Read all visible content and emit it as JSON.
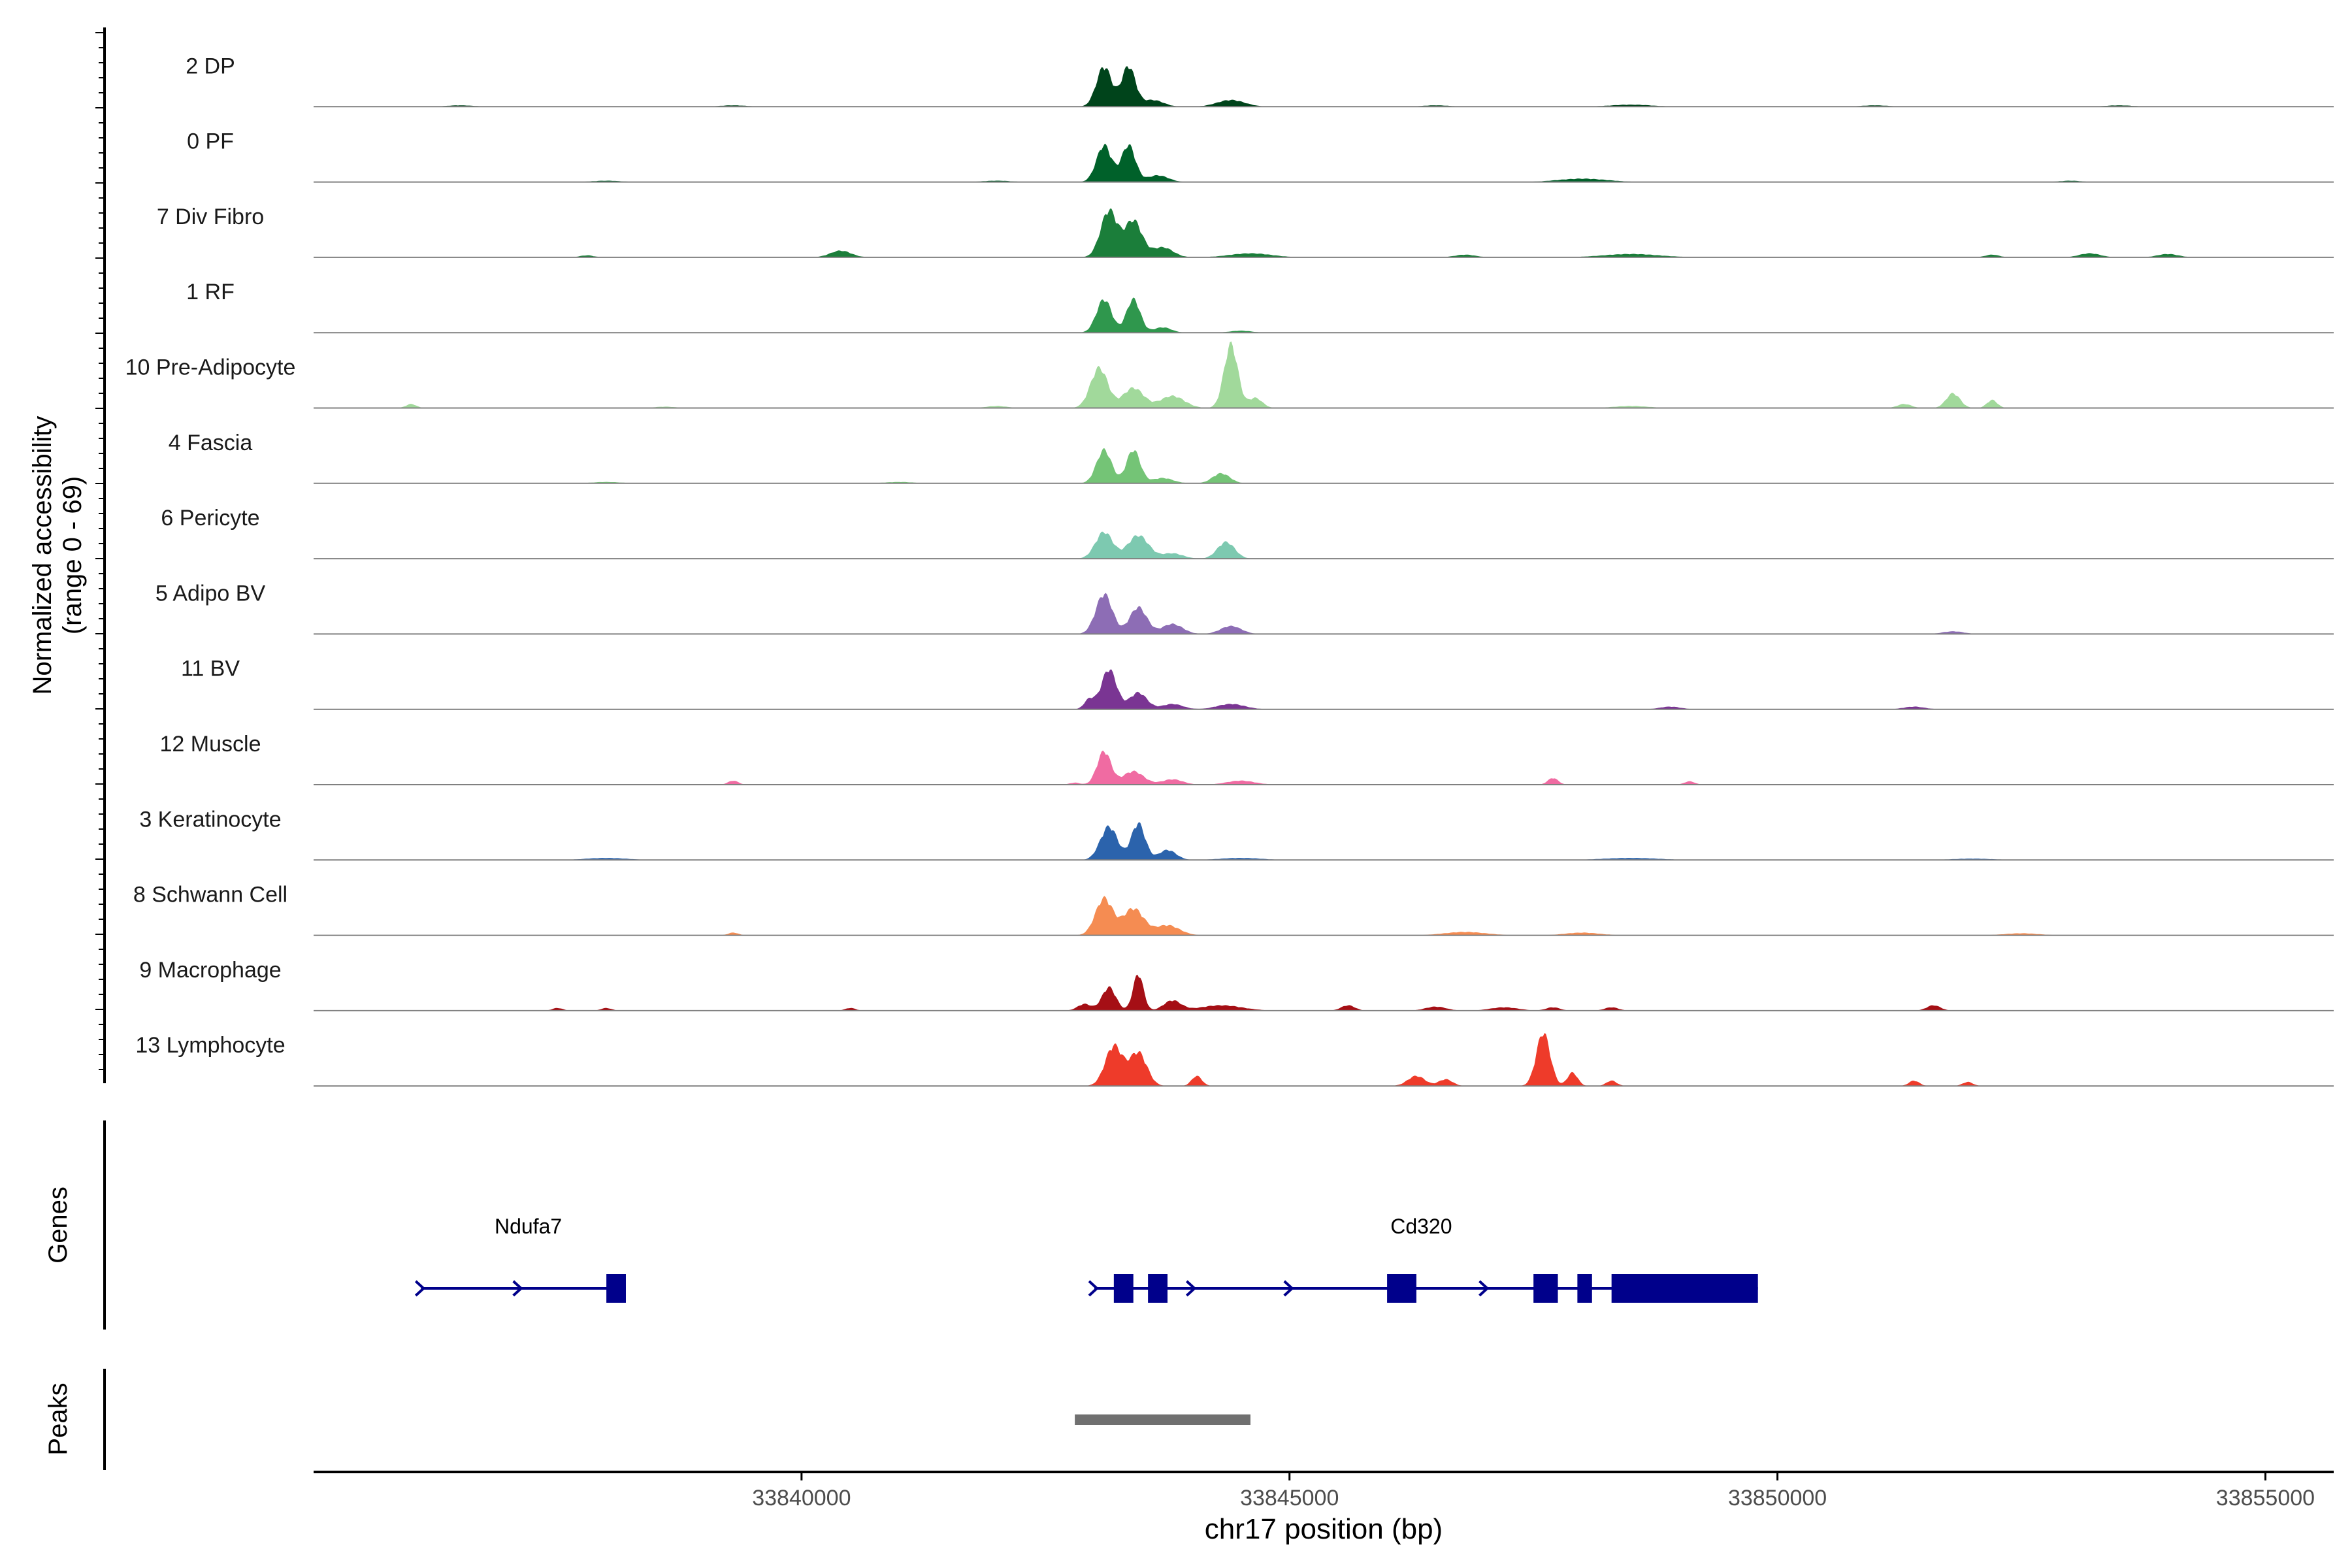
{
  "chart_data": {
    "type": "area",
    "title": "",
    "y_axis_title": "Normalized accessibility",
    "y_axis_range_label": "(range 0 - 69)",
    "ylim": [
      0,
      69
    ],
    "x_axis_title": "chr17 position (bp)",
    "xlim": [
      33835000,
      33855700
    ],
    "x_ticks": [
      33840000,
      33845000,
      33850000,
      33855000
    ],
    "x_tick_labels": [
      "33840000",
      "33845000",
      "33850000",
      "33855000"
    ],
    "tracks": [
      {
        "name": "2 DP",
        "color": "#00441B",
        "peaks": [
          [
            33843100,
            60,
            220
          ],
          [
            33843350,
            60,
            200
          ],
          [
            33843600,
            10,
            300
          ],
          [
            33844400,
            10,
            400
          ],
          [
            33836500,
            2,
            400
          ],
          [
            33839300,
            2,
            400
          ],
          [
            33846500,
            2,
            400
          ],
          [
            33848500,
            3,
            600
          ],
          [
            33851000,
            2,
            400
          ],
          [
            33853500,
            2,
            400
          ]
        ]
      },
      {
        "name": "0 PF",
        "color": "#00612A",
        "peaks": [
          [
            33843100,
            55,
            220
          ],
          [
            33843350,
            55,
            200
          ],
          [
            33843650,
            10,
            300
          ],
          [
            33838000,
            2,
            400
          ],
          [
            33848000,
            5,
            700
          ],
          [
            33842000,
            2,
            400
          ],
          [
            33853000,
            2,
            300
          ]
        ]
      },
      {
        "name": "7 Div Fibro",
        "color": "#1B7E3A",
        "peaks": [
          [
            33843150,
            70,
            240
          ],
          [
            33843400,
            55,
            250
          ],
          [
            33843700,
            15,
            300
          ],
          [
            33840400,
            10,
            300
          ],
          [
            33837800,
            3,
            200
          ],
          [
            33844600,
            6,
            600
          ],
          [
            33846800,
            4,
            300
          ],
          [
            33848500,
            5,
            800
          ],
          [
            33852200,
            4,
            200
          ],
          [
            33853200,
            6,
            300
          ],
          [
            33854000,
            5,
            300
          ]
        ]
      },
      {
        "name": "1 RF",
        "color": "#2F974D",
        "peaks": [
          [
            33843100,
            50,
            220
          ],
          [
            33843400,
            50,
            200
          ],
          [
            33843700,
            8,
            250
          ],
          [
            33844500,
            3,
            300
          ]
        ]
      },
      {
        "name": "10 Pre-Adipocyte",
        "color": "#A1D99B",
        "peaks": [
          [
            33843050,
            60,
            250
          ],
          [
            33843400,
            30,
            300
          ],
          [
            33843800,
            18,
            350
          ],
          [
            33844400,
            95,
            200
          ],
          [
            33844650,
            15,
            200
          ],
          [
            33836000,
            6,
            150
          ],
          [
            33838600,
            2,
            300
          ],
          [
            33842000,
            3,
            300
          ],
          [
            33848500,
            3,
            500
          ],
          [
            33851800,
            22,
            200
          ],
          [
            33852200,
            12,
            150
          ],
          [
            33851300,
            6,
            200
          ]
        ]
      },
      {
        "name": "4 Fascia",
        "color": "#74C476",
        "peaks": [
          [
            33843100,
            50,
            220
          ],
          [
            33843400,
            50,
            200
          ],
          [
            33843700,
            8,
            300
          ],
          [
            33844300,
            15,
            250
          ],
          [
            33838000,
            2,
            400
          ],
          [
            33841000,
            2,
            400
          ]
        ]
      },
      {
        "name": "6 Pericyte",
        "color": "#7DC9B0",
        "peaks": [
          [
            33843100,
            40,
            250
          ],
          [
            33843450,
            35,
            300
          ],
          [
            33843800,
            8,
            300
          ],
          [
            33844350,
            25,
            250
          ]
        ]
      },
      {
        "name": "5 Adipo BV",
        "color": "#8D6DB5",
        "peaks": [
          [
            33843100,
            60,
            240
          ],
          [
            33843450,
            40,
            250
          ],
          [
            33843800,
            15,
            300
          ],
          [
            33844400,
            12,
            300
          ],
          [
            33851800,
            4,
            300
          ]
        ]
      },
      {
        "name": "11 BV",
        "color": "#7A3593",
        "peaks": [
          [
            33842950,
            15,
            150
          ],
          [
            33843150,
            60,
            220
          ],
          [
            33843450,
            25,
            250
          ],
          [
            33843800,
            8,
            300
          ],
          [
            33844400,
            8,
            400
          ],
          [
            33848900,
            4,
            300
          ],
          [
            33851400,
            4,
            300
          ]
        ]
      },
      {
        "name": "12 Muscle",
        "color": "#F06BA2",
        "peaks": [
          [
            33843100,
            50,
            200
          ],
          [
            33843400,
            20,
            300
          ],
          [
            33843800,
            8,
            300
          ],
          [
            33844500,
            6,
            400
          ],
          [
            33839300,
            6,
            150
          ],
          [
            33847700,
            10,
            150
          ],
          [
            33849100,
            5,
            150
          ],
          [
            33842800,
            3,
            150
          ]
        ]
      },
      {
        "name": "3 Keratinocyte",
        "color": "#2B63AC",
        "peaks": [
          [
            33843150,
            50,
            250
          ],
          [
            33843450,
            55,
            200
          ],
          [
            33843750,
            15,
            250
          ],
          [
            33838000,
            3,
            600
          ],
          [
            33844500,
            3,
            600
          ],
          [
            33848500,
            3,
            800
          ],
          [
            33852000,
            2,
            600
          ]
        ]
      },
      {
        "name": "8 Schwann Cell",
        "color": "#F58C52",
        "peaks": [
          [
            33843100,
            55,
            250
          ],
          [
            33843400,
            40,
            300
          ],
          [
            33843750,
            15,
            350
          ],
          [
            33839300,
            4,
            150
          ],
          [
            33846800,
            5,
            600
          ],
          [
            33848000,
            4,
            500
          ],
          [
            33852500,
            3,
            500
          ]
        ]
      },
      {
        "name": "9 Macrophage",
        "color": "#A50F15",
        "peaks": [
          [
            33842900,
            10,
            200
          ],
          [
            33843150,
            35,
            200
          ],
          [
            33843450,
            55,
            150
          ],
          [
            33843800,
            15,
            250
          ],
          [
            33844300,
            8,
            600
          ],
          [
            33837500,
            4,
            150
          ],
          [
            33838000,
            4,
            150
          ],
          [
            33840500,
            4,
            150
          ],
          [
            33845600,
            8,
            200
          ],
          [
            33846500,
            6,
            300
          ],
          [
            33847200,
            5,
            400
          ],
          [
            33847700,
            5,
            200
          ],
          [
            33848300,
            5,
            200
          ],
          [
            33851600,
            8,
            200
          ]
        ]
      },
      {
        "name": "13 Lymphocyte",
        "color": "#EE3B2A",
        "peaks": [
          [
            33843200,
            60,
            250
          ],
          [
            33843450,
            50,
            250
          ],
          [
            33844050,
            15,
            150
          ],
          [
            33846300,
            15,
            250
          ],
          [
            33846600,
            10,
            200
          ],
          [
            33847600,
            80,
            200
          ],
          [
            33847900,
            20,
            150
          ],
          [
            33848300,
            8,
            150
          ],
          [
            33851400,
            8,
            150
          ],
          [
            33851950,
            6,
            150
          ]
        ]
      }
    ],
    "genes": {
      "label": "Genes",
      "color": "#00008B",
      "items": [
        {
          "name": "Ndufa7",
          "start": 33836100,
          "end": 33838200,
          "strand": "+",
          "exons": [
            [
              33838000,
              33838200
            ]
          ],
          "label_pos": 33837200
        },
        {
          "name": "Cd320",
          "start": 33843000,
          "end": 33849800,
          "strand": "+",
          "exons": [
            [
              33843200,
              33843400
            ],
            [
              33843550,
              33843750
            ],
            [
              33846000,
              33846300
            ],
            [
              33847500,
              33847750
            ],
            [
              33847950,
              33848100
            ],
            [
              33848300,
              33849800
            ]
          ],
          "label_pos": 33846350
        }
      ]
    },
    "peaks_track": {
      "label": "Peaks",
      "color": "#707070",
      "regions": [
        [
          33842800,
          33844600
        ]
      ]
    }
  }
}
